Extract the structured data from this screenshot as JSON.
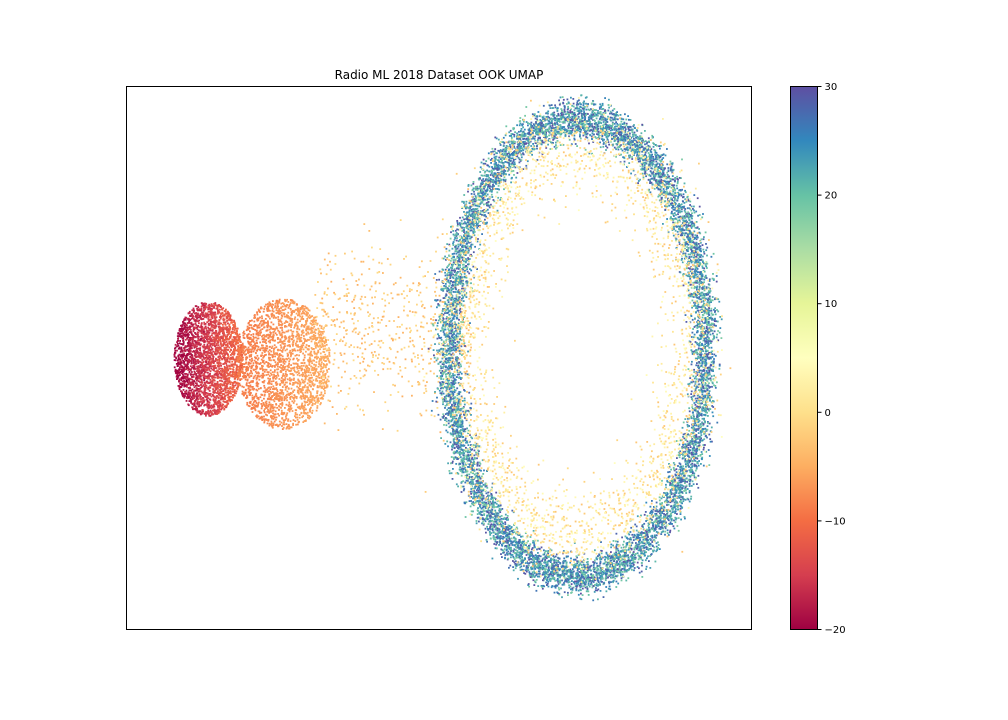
{
  "chart_data": {
    "type": "scatter",
    "title": "Radio ML 2018 Dataset OOK UMAP",
    "xlabel": "",
    "ylabel": "",
    "x_ticks_visible": false,
    "y_ticks_visible": false,
    "grid": false,
    "legend": "none",
    "colormap": "Spectral",
    "color_range": [
      -20,
      30
    ],
    "colorbar_ticks": [
      {
        "value": 30,
        "label": "30"
      },
      {
        "value": 20,
        "label": "20"
      },
      {
        "value": 10,
        "label": "10"
      },
      {
        "value": 0,
        "label": "0"
      },
      {
        "value": -10,
        "label": "−10"
      },
      {
        "value": -20,
        "label": "−20"
      }
    ],
    "colorbar_stops": [
      "#5e4fa2",
      "#3288bd",
      "#66c2a5",
      "#abdda4",
      "#e6f598",
      "#ffffbf",
      "#fee08b",
      "#fdae61",
      "#f46d43",
      "#d53e4f",
      "#9e0142"
    ],
    "clusters": [
      {
        "shape": "blob",
        "cx": 0.13,
        "cy": 0.5,
        "rx": 0.055,
        "ry": 0.105,
        "value_range": [
          -20,
          -10
        ],
        "count": 2600
      },
      {
        "shape": "blob",
        "cx": 0.25,
        "cy": 0.51,
        "rx": 0.075,
        "ry": 0.12,
        "value_range": [
          -9,
          -5
        ],
        "count": 2200
      },
      {
        "shape": "bridge",
        "x_from": 0.3,
        "x_to": 0.55,
        "cy": 0.45,
        "spread": 0.12,
        "value_range": [
          -5,
          0
        ],
        "count": 600
      },
      {
        "shape": "ring",
        "cx": 0.72,
        "cy": 0.48,
        "rx": 0.205,
        "ry": 0.42,
        "width": 0.018,
        "value_range": [
          18,
          30
        ],
        "count": 9000
      },
      {
        "shape": "ring",
        "cx": 0.72,
        "cy": 0.47,
        "rx": 0.185,
        "ry": 0.36,
        "width": 0.04,
        "value_range": [
          -3,
          5
        ],
        "count": 2600
      }
    ]
  }
}
